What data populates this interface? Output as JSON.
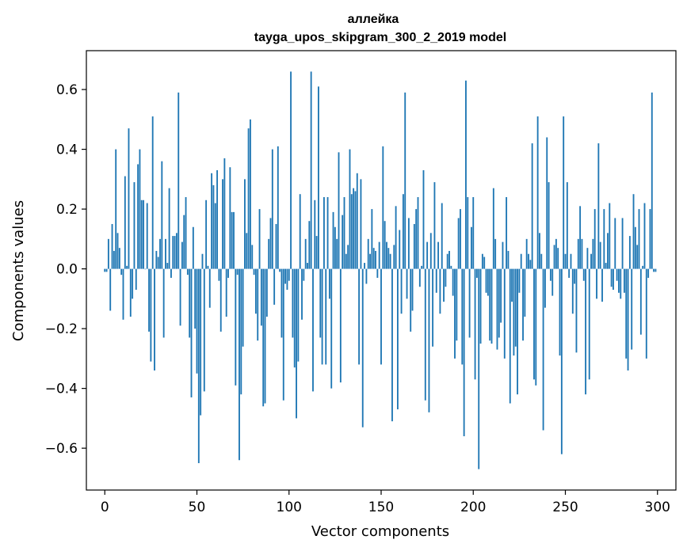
{
  "chart_data": {
    "type": "bar",
    "title": "аллейка",
    "subtitle": "tayga_upos_skipgram_300_2_2019 model",
    "xlabel": "Vector components",
    "ylabel": "Components values",
    "xlim": [
      -10,
      310
    ],
    "ylim": [
      -0.74,
      0.73
    ],
    "xticks": [
      0,
      50,
      100,
      150,
      200,
      250,
      300
    ],
    "xtick_labels": [
      "0",
      "50",
      "100",
      "150",
      "200",
      "250",
      "300"
    ],
    "yticks": [
      -0.6,
      -0.4,
      -0.2,
      0.0,
      0.2,
      0.4,
      0.6
    ],
    "ytick_labels": [
      "−0.6",
      "−0.4",
      "−0.2",
      "0.0",
      "0.2",
      "0.4",
      "0.6"
    ],
    "color": "#1f77b4",
    "grid": false,
    "values": [
      -0.01,
      -0.01,
      0.1,
      -0.14,
      0.15,
      0.06,
      0.4,
      0.12,
      0.07,
      -0.02,
      -0.17,
      0.31,
      0.01,
      0.47,
      -0.16,
      -0.1,
      0.29,
      -0.07,
      0.35,
      0.4,
      0.23,
      0.23,
      0.0,
      0.22,
      -0.21,
      -0.31,
      0.51,
      -0.34,
      0.06,
      0.04,
      0.1,
      0.36,
      -0.23,
      0.1,
      0.02,
      0.27,
      -0.03,
      0.11,
      0.11,
      0.12,
      0.59,
      -0.19,
      0.09,
      0.18,
      0.24,
      -0.02,
      -0.23,
      -0.43,
      0.14,
      -0.2,
      -0.35,
      -0.65,
      -0.49,
      0.05,
      -0.41,
      0.23,
      0.01,
      -0.13,
      0.32,
      0.28,
      0.22,
      0.33,
      -0.04,
      -0.21,
      0.3,
      0.37,
      -0.16,
      -0.03,
      0.34,
      0.19,
      0.19,
      -0.39,
      -0.02,
      -0.64,
      -0.42,
      -0.26,
      0.3,
      0.12,
      0.47,
      0.5,
      0.08,
      -0.02,
      -0.15,
      -0.24,
      0.2,
      -0.19,
      -0.46,
      -0.45,
      -0.16,
      0.1,
      0.17,
      0.4,
      -0.12,
      0.15,
      0.41,
      -0.01,
      -0.23,
      -0.44,
      -0.05,
      -0.07,
      -0.04,
      0.66,
      -0.23,
      -0.33,
      -0.5,
      -0.31,
      0.25,
      -0.17,
      -0.04,
      0.1,
      0.02,
      0.16,
      0.66,
      -0.41,
      0.23,
      0.11,
      0.61,
      -0.23,
      -0.32,
      0.24,
      -0.32,
      0.24,
      -0.1,
      -0.4,
      0.19,
      0.14,
      0.1,
      0.39,
      -0.38,
      0.18,
      0.24,
      0.05,
      0.08,
      0.4,
      0.25,
      0.27,
      0.26,
      0.32,
      -0.32,
      0.3,
      -0.53,
      0.02,
      -0.05,
      0.1,
      0.05,
      0.2,
      0.07,
      0.06,
      -0.03,
      0.09,
      -0.32,
      0.41,
      0.16,
      0.09,
      0.07,
      0.05,
      -0.51,
      0.08,
      0.21,
      -0.47,
      0.13,
      -0.15,
      0.25,
      0.59,
      -0.1,
      0.17,
      -0.21,
      -0.14,
      0.15,
      0.2,
      0.24,
      -0.06,
      0.01,
      0.33,
      -0.44,
      0.09,
      -0.48,
      0.12,
      -0.26,
      0.29,
      -0.08,
      0.09,
      -0.15,
      0.22,
      -0.11,
      -0.06,
      0.05,
      0.06,
      0.01,
      -0.09,
      -0.3,
      -0.24,
      0.17,
      0.2,
      -0.32,
      -0.56,
      0.63,
      0.24,
      -0.23,
      0.14,
      0.24,
      -0.37,
      -0.03,
      -0.67,
      -0.25,
      0.05,
      0.04,
      -0.08,
      -0.09,
      -0.24,
      -0.25,
      0.27,
      0.1,
      -0.27,
      -0.23,
      -0.18,
      0.09,
      -0.3,
      0.24,
      0.06,
      -0.45,
      -0.11,
      -0.29,
      -0.26,
      -0.42,
      -0.08,
      0.05,
      -0.24,
      -0.16,
      0.1,
      0.05,
      0.03,
      0.42,
      -0.37,
      -0.39,
      0.51,
      0.12,
      0.05,
      -0.54,
      -0.13,
      0.44,
      0.29,
      -0.04,
      -0.09,
      0.08,
      0.1,
      0.07,
      -0.29,
      -0.62,
      0.51,
      0.05,
      0.29,
      -0.03,
      0.05,
      -0.15,
      -0.05,
      -0.28,
      0.1,
      0.21,
      0.1,
      -0.04,
      -0.42,
      0.07,
      -0.37,
      0.05,
      0.1,
      0.2,
      -0.1,
      0.42,
      0.09,
      -0.11,
      0.2,
      0.02,
      0.12,
      0.22,
      -0.06,
      -0.07,
      0.17,
      -0.04,
      -0.08,
      -0.1,
      0.17,
      -0.08,
      -0.3,
      -0.34,
      0.11,
      -0.27,
      0.25,
      0.14,
      0.08,
      0.2,
      -0.22,
      0.01,
      0.22,
      -0.3,
      -0.03,
      0.2,
      0.59,
      -0.01,
      -0.01
    ]
  }
}
